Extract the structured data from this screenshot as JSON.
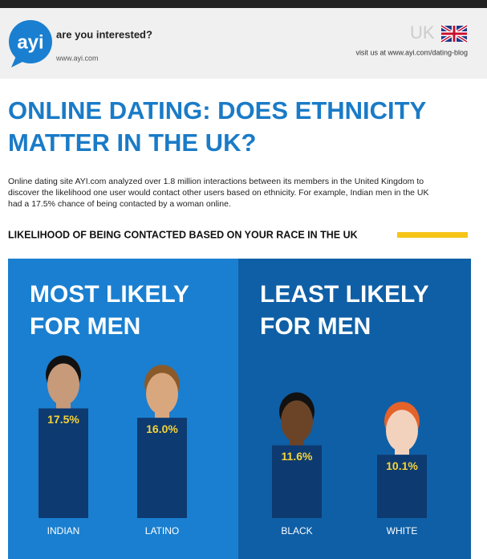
{
  "header": {
    "logo": "ayi",
    "tagline": "are you interested?",
    "site": "www.ayi.com",
    "country": "UK",
    "blog": "visit us at www.ayi.com/dating-blog"
  },
  "title": [
    "ONLINE DATING: DOES ETHNICITY",
    "MATTER IN THE UK?"
  ],
  "intro": [
    "Online dating site AYI.com analyzed over 1.8 million interactions between its members in the United Kingdom to",
    "discover the likelihood one user would contact other users based on ethnicity. For example, Indian men in the UK",
    "had a 17.5% chance of being contacted by a woman online."
  ],
  "subheading": "LIKELIHOOD OF BEING CONTACTED BASED ON YOUR RACE IN THE UK",
  "chart_data": [
    {
      "type": "bar",
      "title": [
        "MOST LIKELY",
        "FOR MEN"
      ],
      "categories": [
        "INDIAN",
        "LATINO"
      ],
      "values": [
        17.5,
        16.0
      ],
      "value_labels": [
        "17.5%",
        "16.0%"
      ],
      "color": "#0d3a70",
      "background": "#1a7fd0"
    },
    {
      "type": "bar",
      "title": [
        "LEAST LIKELY",
        "FOR MEN"
      ],
      "categories": [
        "BLACK",
        "WHITE"
      ],
      "values": [
        11.6,
        10.1
      ],
      "value_labels": [
        "11.6%",
        "10.1%"
      ],
      "color": "#0d3a70",
      "background": "#0f5fa6"
    }
  ]
}
